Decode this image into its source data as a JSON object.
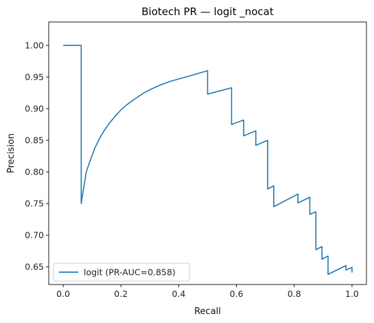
{
  "chart_data": {
    "type": "line",
    "title": "Biotech PR — logit _nocat",
    "xlabel": "Recall",
    "ylabel": "Precision",
    "xlim": [
      -0.05,
      1.05
    ],
    "ylim": [
      0.622,
      1.037
    ],
    "xticks": [
      0.0,
      0.2,
      0.4,
      0.6,
      0.8,
      1.0
    ],
    "xtick_labels": [
      "0.0",
      "0.2",
      "0.4",
      "0.6",
      "0.8",
      "1.0"
    ],
    "yticks": [
      0.65,
      0.7,
      0.75,
      0.8,
      0.85,
      0.9,
      0.95,
      1.0
    ],
    "ytick_labels": [
      "0.65",
      "0.70",
      "0.75",
      "0.80",
      "0.85",
      "0.90",
      "0.95",
      "1.00"
    ],
    "grid": false,
    "legend_position": "lower-left",
    "series": [
      {
        "name": "logit (PR-AUC=0.858)",
        "color": "#1f77b4",
        "points": [
          [
            0.0,
            1.0
          ],
          [
            0.0625,
            1.0
          ],
          [
            0.0625,
            0.75
          ],
          [
            0.07,
            0.772
          ],
          [
            0.08,
            0.8
          ],
          [
            0.095,
            0.82
          ],
          [
            0.11,
            0.838
          ],
          [
            0.125,
            0.852
          ],
          [
            0.14,
            0.864
          ],
          [
            0.16,
            0.877
          ],
          [
            0.18,
            0.888
          ],
          [
            0.2,
            0.898
          ],
          [
            0.22,
            0.906
          ],
          [
            0.25,
            0.916
          ],
          [
            0.28,
            0.925
          ],
          [
            0.31,
            0.932
          ],
          [
            0.34,
            0.938
          ],
          [
            0.37,
            0.943
          ],
          [
            0.4,
            0.947
          ],
          [
            0.44,
            0.952
          ],
          [
            0.5,
            0.96
          ],
          [
            0.5,
            0.923
          ],
          [
            0.583,
            0.933
          ],
          [
            0.583,
            0.875
          ],
          [
            0.625,
            0.882
          ],
          [
            0.625,
            0.857
          ],
          [
            0.667,
            0.865
          ],
          [
            0.667,
            0.842
          ],
          [
            0.708,
            0.85
          ],
          [
            0.708,
            0.773
          ],
          [
            0.729,
            0.778
          ],
          [
            0.729,
            0.745
          ],
          [
            0.813,
            0.765
          ],
          [
            0.813,
            0.751
          ],
          [
            0.854,
            0.76
          ],
          [
            0.854,
            0.733
          ],
          [
            0.875,
            0.737
          ],
          [
            0.875,
            0.677
          ],
          [
            0.896,
            0.682
          ],
          [
            0.896,
            0.662
          ],
          [
            0.917,
            0.667
          ],
          [
            0.917,
            0.638
          ],
          [
            0.979,
            0.652
          ],
          [
            0.979,
            0.645
          ],
          [
            1.0,
            0.649
          ],
          [
            1.0,
            0.641
          ]
        ]
      }
    ]
  }
}
